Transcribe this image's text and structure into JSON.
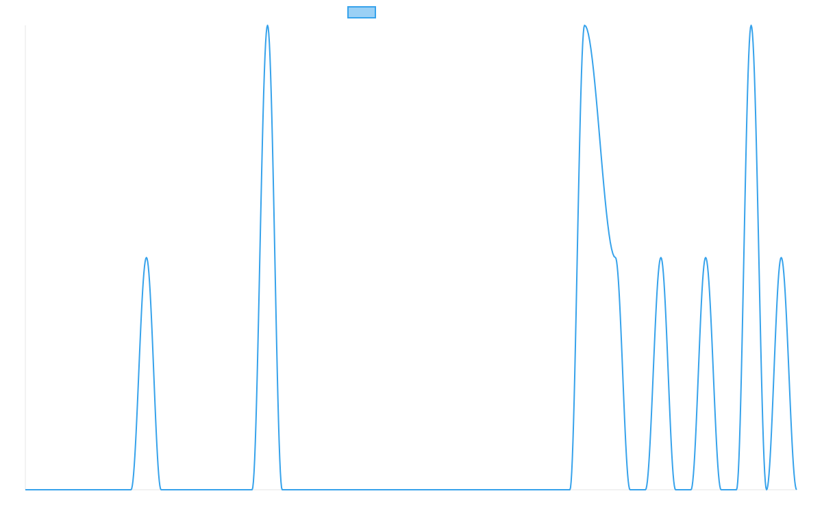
{
  "colors": {
    "line": "#36a2eb",
    "legend_fill": "#9ad0f5",
    "axis": "#e6e6e6"
  },
  "chart_data": {
    "type": "line",
    "title": "",
    "xlabel": "",
    "ylabel": "",
    "grid": false,
    "legend": {
      "placement": "top-center",
      "label": ""
    },
    "x_range": [
      0,
      1
    ],
    "ylim": [
      0,
      2
    ],
    "series": [
      {
        "color": "#36a2eb",
        "points": [
          {
            "x": 0.0,
            "y": 0
          },
          {
            "x": 0.137,
            "y": 0
          },
          {
            "x": 0.157,
            "y": 1
          },
          {
            "x": 0.176,
            "y": 0
          },
          {
            "x": 0.294,
            "y": 0
          },
          {
            "x": 0.314,
            "y": 2
          },
          {
            "x": 0.333,
            "y": 0
          },
          {
            "x": 0.706,
            "y": 0
          },
          {
            "x": 0.725,
            "y": 2
          },
          {
            "x": 0.765,
            "y": 1
          },
          {
            "x": 0.784,
            "y": 0
          },
          {
            "x": 0.804,
            "y": 0
          },
          {
            "x": 0.824,
            "y": 1
          },
          {
            "x": 0.843,
            "y": 0
          },
          {
            "x": 0.863,
            "y": 0
          },
          {
            "x": 0.882,
            "y": 1
          },
          {
            "x": 0.902,
            "y": 0
          },
          {
            "x": 0.922,
            "y": 0
          },
          {
            "x": 0.941,
            "y": 2
          },
          {
            "x": 0.961,
            "y": 0
          },
          {
            "x": 0.98,
            "y": 1
          },
          {
            "x": 1.0,
            "y": 0
          }
        ]
      }
    ]
  }
}
